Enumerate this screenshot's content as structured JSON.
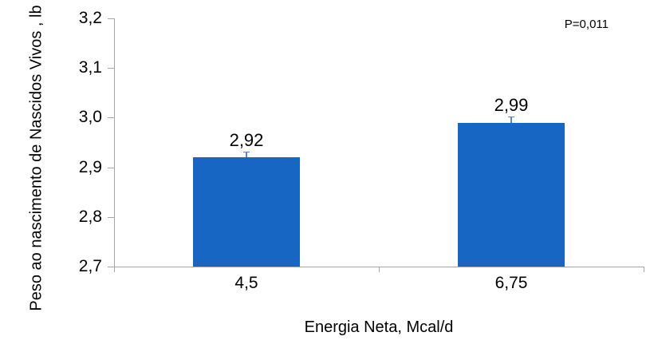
{
  "chart_data": {
    "type": "bar",
    "title": "",
    "xlabel": "Energia Neta, Mcal/d",
    "ylabel": "Peso ao nascimento de Nascidos Vivos , lb",
    "annotation": "P=0,011",
    "categories": [
      "4,5",
      "6,75"
    ],
    "values": [
      2.92,
      2.99
    ],
    "value_labels": [
      "2,92",
      "2,99"
    ],
    "errors": [
      0.012,
      0.012
    ],
    "ylim": [
      2.7,
      3.2
    ],
    "ytick_interval": 0.1,
    "yticks": [
      {
        "label": "3,2",
        "value": 3.2
      },
      {
        "label": "3,1",
        "value": 3.1
      },
      {
        "label": "3,0",
        "value": 3.0
      },
      {
        "label": "2,9",
        "value": 2.9
      },
      {
        "label": "2,8",
        "value": 2.8
      },
      {
        "label": "2,7",
        "value": 2.7
      }
    ],
    "grid": false,
    "legend": "none",
    "bar_color": "#1866c4",
    "error_bar_color": "#5b87c5",
    "axis_color": "#a6a6a6",
    "text_color": "#000000",
    "background_color": "#ffffff"
  }
}
